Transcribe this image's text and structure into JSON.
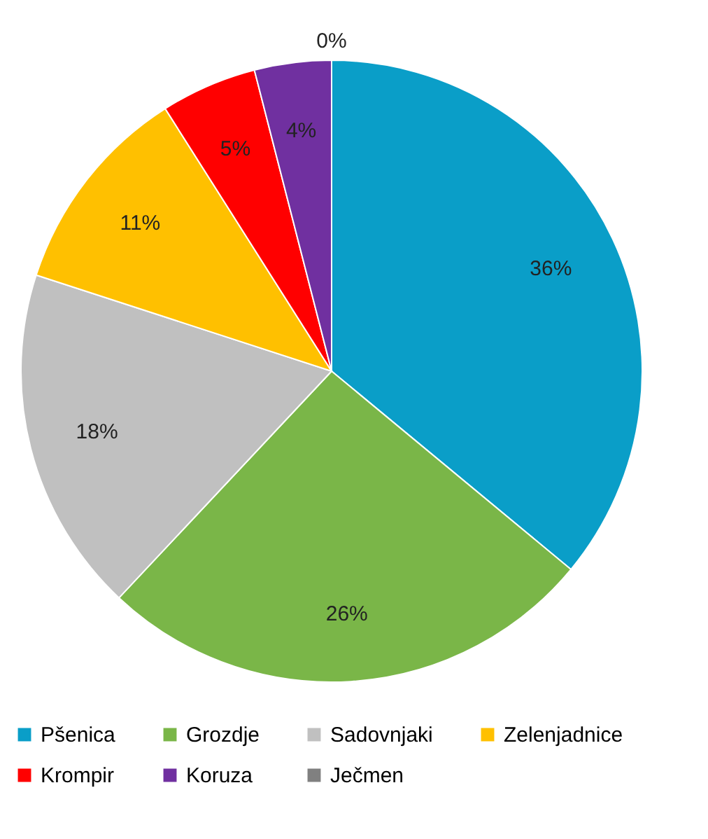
{
  "chart_data": {
    "type": "pie",
    "categories": [
      "Pšenica",
      "Grozdje",
      "Sadovnjaki",
      "Zelenjadnice",
      "Krompir",
      "Koruza",
      "Ječmen"
    ],
    "values": [
      36,
      26,
      18,
      11,
      5,
      4,
      0
    ],
    "value_labels": [
      "36%",
      "26%",
      "18%",
      "11%",
      "5%",
      "4%",
      "0%"
    ],
    "colors": [
      "#0a9ec8",
      "#7ab648",
      "#c0c0c0",
      "#ffc000",
      "#ff0000",
      "#7030a0",
      "#808080"
    ],
    "legend": "bottom"
  }
}
